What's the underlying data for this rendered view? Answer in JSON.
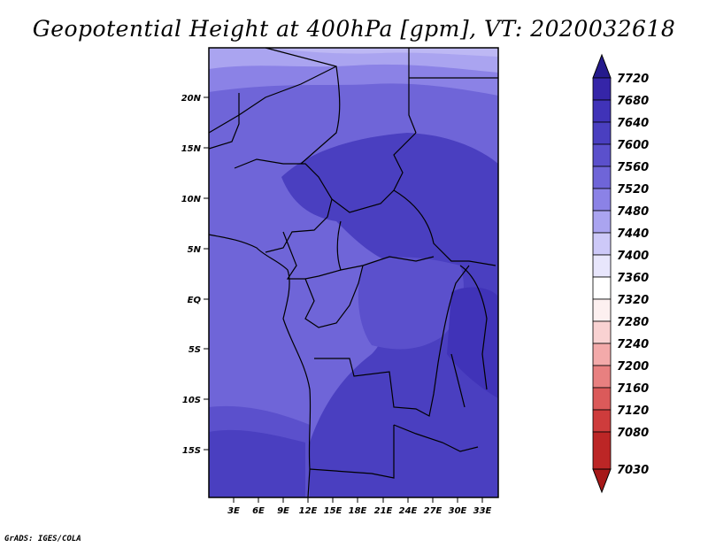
{
  "title": "Geopotential Height at 400hPa [gpm], VT: 2020032618",
  "credit": "GrADS: IGES/COLA",
  "map": {
    "lat_labels": [
      "20N",
      "15N",
      "10N",
      "5N",
      "EQ",
      "5S",
      "10S",
      "15S"
    ],
    "lon_labels": [
      "3E",
      "6E",
      "9E",
      "12E",
      "15E",
      "18E",
      "21E",
      "24E",
      "27E",
      "30E",
      "33E"
    ]
  },
  "colorbar": {
    "labels": [
      "7720",
      "7680",
      "7640",
      "7600",
      "7560",
      "7520",
      "7480",
      "7440",
      "7400",
      "7360",
      "7320",
      "7280",
      "7240",
      "7200",
      "7160",
      "7120",
      "7080",
      "7030"
    ],
    "colors": [
      "#251a8c",
      "#3525a8",
      "#4033b8",
      "#4a3fc0",
      "#5b50cc",
      "#6f65d8",
      "#8b82e6",
      "#aaa4f0",
      "#cdc9f8",
      "#e8e6fc",
      "#fdf0f0",
      "#f9d2d2",
      "#f3aaaa",
      "#e88080",
      "#db5a5a",
      "#ce3c3c",
      "#bc2626",
      "#a61818"
    ]
  }
}
